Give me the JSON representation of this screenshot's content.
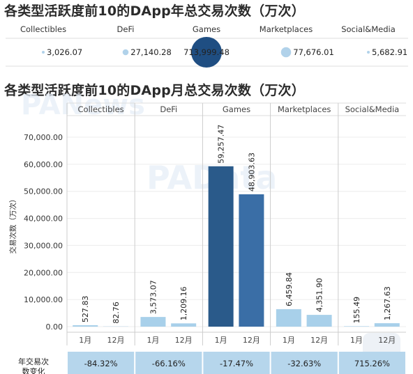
{
  "titles": {
    "annual": "各类型活跃度前10的DApp年总交易次数（万次）",
    "monthly": "各类型活跃度前10的DApp月总交易次数（万次）"
  },
  "watermarks": [
    "PANews",
    "PAData"
  ],
  "colors": {
    "bubble": "#a9cde8",
    "bubble_large": "#1f4e82",
    "jan_games": "#2a5a8a",
    "dec_games": "#3a6ea6",
    "light_bar": "#a8d0ea",
    "change_cell": "#b6d6ec"
  },
  "chart_data": [
    {
      "type": "scatter",
      "title": "各类型活跃度前10的DApp年总交易次数（万次）",
      "categories": [
        "Collectibles",
        "DeFi",
        "Games",
        "Marketplaces",
        "Social&Media"
      ],
      "value_labels": [
        "3,026.07",
        "27,140.28",
        "713,999.48",
        "77,676.01",
        "5,682.91"
      ],
      "values": [
        3026.07,
        27140.28,
        713999.48,
        77676.01,
        5682.91
      ]
    },
    {
      "type": "bar",
      "title": "各类型活跃度前10的DApp月总交易次数（万次）",
      "categories": [
        "Collectibles",
        "DeFi",
        "Games",
        "Marketplaces",
        "Social&Media"
      ],
      "months": [
        "1月",
        "12月"
      ],
      "ylabel": "交易次数（万次）",
      "ylim": [
        0,
        78000
      ],
      "yticks": [
        0,
        10000,
        20000,
        30000,
        40000,
        50000,
        60000,
        70000
      ],
      "ytick_labels": [
        "0.00",
        "10,000.00",
        "20,000.00",
        "30,000.00",
        "40,000.00",
        "50,000.00",
        "60,000.00",
        "70,000.00"
      ],
      "series": [
        {
          "values": [
            527.83,
            3573.07,
            59257.47,
            6459.84,
            155.49
          ],
          "labels": [
            "527.83",
            "3,573.07",
            "59,257.47",
            "6,459.84",
            "155.49"
          ]
        },
        {
          "values": [
            82.76,
            1209.16,
            48903.63,
            4351.9,
            1267.63
          ],
          "labels": [
            "82.76",
            "1,209.16",
            "48,903.63",
            "4,351.90",
            "1,267.63"
          ]
        }
      ],
      "change_row_label": "年交易次数变化",
      "change_values": [
        "-84.32%",
        "-66.16%",
        "-17.47%",
        "-32.63%",
        "715.26%"
      ]
    }
  ]
}
